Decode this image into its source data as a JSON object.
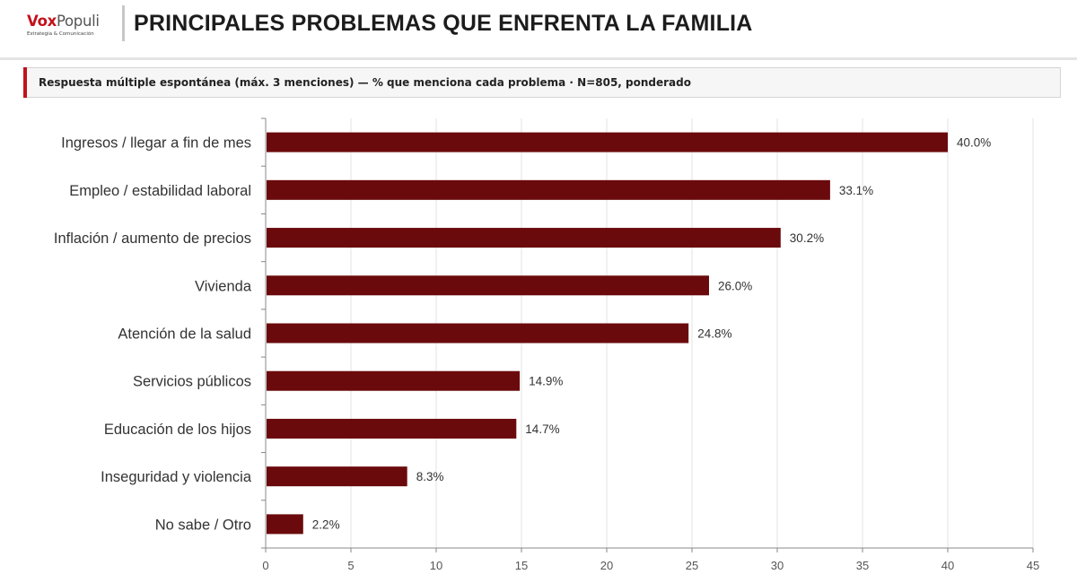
{
  "brand": {
    "name_part1": "Vox",
    "name_part2": "Populi",
    "tagline": "Estrategia & Comunicación"
  },
  "header": {
    "title": "PRINCIPALES PROBLEMAS QUE ENFRENTA LA FAMILIA"
  },
  "subtitle": "Respuesta múltiple espontánea (máx. 3 menciones) — % que menciona cada problema · N=805, ponderado",
  "colors": {
    "bar": "#6b0a0c",
    "accent": "#c2121c",
    "grid": "#e3e3e3"
  },
  "chart_data": {
    "type": "bar",
    "orientation": "horizontal",
    "categories": [
      "Ingresos / llegar a fin de mes",
      "Empleo / estabilidad laboral",
      "Inflación / aumento de precios",
      "Vivienda",
      "Atención de la salud",
      "Servicios públicos",
      "Educación de los hijos",
      "Inseguridad y violencia",
      "No sabe / Otro"
    ],
    "values": [
      40.0,
      33.1,
      30.2,
      26.0,
      24.8,
      14.9,
      14.7,
      8.3,
      2.2
    ],
    "value_labels": [
      "40.0%",
      "33.1%",
      "30.2%",
      "26.0%",
      "24.8%",
      "14.9%",
      "14.7%",
      "8.3%",
      "2.2%"
    ],
    "xlim": [
      0,
      45
    ],
    "xticks": [
      0,
      5,
      10,
      15,
      20,
      25,
      30,
      35,
      40,
      45
    ],
    "grid": true
  }
}
